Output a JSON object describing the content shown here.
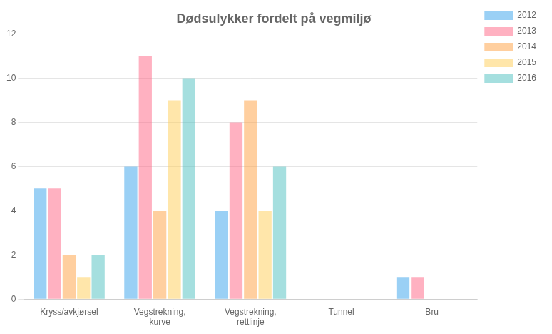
{
  "chart_data": {
    "type": "bar",
    "title": "Dødsulykker fordelt på vegmiljø",
    "categories": [
      "Kryss/avkjørsel",
      "Vegstrekning,\nkurve",
      "Vegstrekning,\nrettlinje",
      "Tunnel",
      "Bru"
    ],
    "series": [
      {
        "name": "2012",
        "values": [
          5,
          6,
          4,
          0,
          1
        ]
      },
      {
        "name": "2013",
        "values": [
          5,
          11,
          8,
          0,
          1
        ]
      },
      {
        "name": "2014",
        "values": [
          2,
          4,
          9,
          0,
          0
        ]
      },
      {
        "name": "2015",
        "values": [
          1,
          9,
          4,
          0,
          0
        ]
      },
      {
        "name": "2016",
        "values": [
          2,
          10,
          6,
          0,
          0
        ]
      }
    ],
    "ylim": [
      0,
      12
    ],
    "yticks": [
      0,
      2,
      4,
      6,
      8,
      10,
      12
    ],
    "grid": true,
    "legend": "right"
  }
}
